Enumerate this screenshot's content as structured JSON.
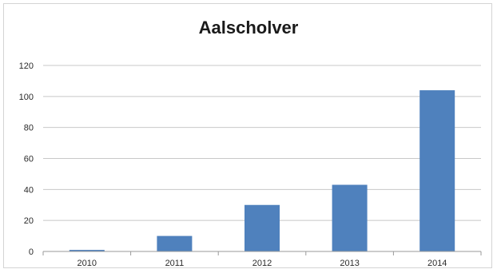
{
  "chart_data": {
    "type": "bar",
    "title": "Aalscholver",
    "xlabel": "",
    "ylabel": "",
    "categories": [
      "2010",
      "2011",
      "2012",
      "2013",
      "2014"
    ],
    "values": [
      1,
      10,
      30,
      43,
      104
    ],
    "ylim": [
      0,
      120
    ],
    "yticks": [
      0,
      20,
      40,
      60,
      80,
      100,
      120
    ],
    "grid": true,
    "legend": "none",
    "bar_color": "#4f81bd"
  }
}
